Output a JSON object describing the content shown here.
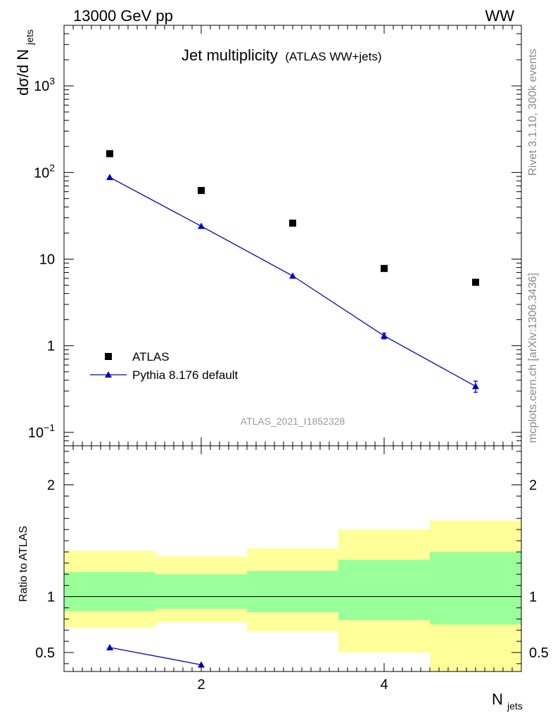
{
  "header": {
    "energy_label": "13000 GeV pp",
    "process_label": "WW"
  },
  "side_labels": {
    "rivet": "Rivet 3.1.10,  300k events",
    "mcplots": "mcplots.cern.ch [arXiv:1306.3436]"
  },
  "chart_data": [
    {
      "type": "scatter",
      "panel": "main",
      "title": "Jet multiplicity",
      "subtitle": "(ATLAS WW+jets)",
      "analysis_label": "ATLAS_2021_I1852328",
      "ylabel": "dσ/d N",
      "ylabel_sub": "jets",
      "yscale": "log",
      "ylim": [
        0.07,
        5000
      ],
      "xlim": [
        0.5,
        5.5
      ],
      "ytick_labels": [
        {
          "value": 0.1,
          "base": "10",
          "exp": "−1"
        },
        {
          "value": 1,
          "base": "1",
          "exp": ""
        },
        {
          "value": 10,
          "base": "10",
          "exp": ""
        },
        {
          "value": 100,
          "base": "10",
          "exp": "2"
        },
        {
          "value": 1000,
          "base": "10",
          "exp": "3"
        }
      ],
      "series": [
        {
          "name": "ATLAS",
          "marker": "square",
          "color": "#000000",
          "x": [
            1,
            2,
            3,
            4,
            5
          ],
          "y": [
            165,
            62,
            26,
            7.8,
            5.4
          ]
        },
        {
          "name": "Pythia 8.176 default",
          "marker": "triangle",
          "color": "#0000cc",
          "x": [
            1,
            2,
            3,
            4,
            5
          ],
          "y": [
            88,
            24,
            6.4,
            1.3,
            0.34
          ],
          "yerr": [
            0,
            0,
            0,
            0.1,
            0.05
          ]
        }
      ],
      "legend": [
        "ATLAS",
        "Pythia 8.176 default"
      ],
      "legend_position": "lower-left"
    },
    {
      "type": "area",
      "panel": "ratio",
      "ylabel": "Ratio to ATLAS",
      "xlabel": "N",
      "xlabel_sub": "jets",
      "ylim": [
        0.33,
        2.35
      ],
      "xlim": [
        0.5,
        5.5
      ],
      "ytick_labels": [
        0.5,
        1,
        2
      ],
      "xtick_labels": [
        2,
        4
      ],
      "reference_line": 1,
      "bins": [
        {
          "lo": 0.5,
          "hi": 1.5,
          "inner": [
            0.87,
            1.22
          ],
          "outer": [
            0.72,
            1.41
          ]
        },
        {
          "lo": 1.5,
          "hi": 2.5,
          "inner": [
            0.89,
            1.2
          ],
          "outer": [
            0.77,
            1.36
          ]
        },
        {
          "lo": 2.5,
          "hi": 3.5,
          "inner": [
            0.86,
            1.23
          ],
          "outer": [
            0.69,
            1.43
          ]
        },
        {
          "lo": 3.5,
          "hi": 4.5,
          "inner": [
            0.79,
            1.33
          ],
          "outer": [
            0.5,
            1.6
          ]
        },
        {
          "lo": 4.5,
          "hi": 5.5,
          "inner": [
            0.75,
            1.4
          ],
          "outer": [
            0.33,
            1.68
          ]
        }
      ],
      "series": [
        {
          "name": "Pythia 8.176 default",
          "color": "#0000cc",
          "x": [
            1,
            2
          ],
          "y": [
            0.545,
            0.39
          ]
        }
      ],
      "band_colors": {
        "inner": "#99ff99",
        "outer": "#ffff99"
      }
    }
  ]
}
